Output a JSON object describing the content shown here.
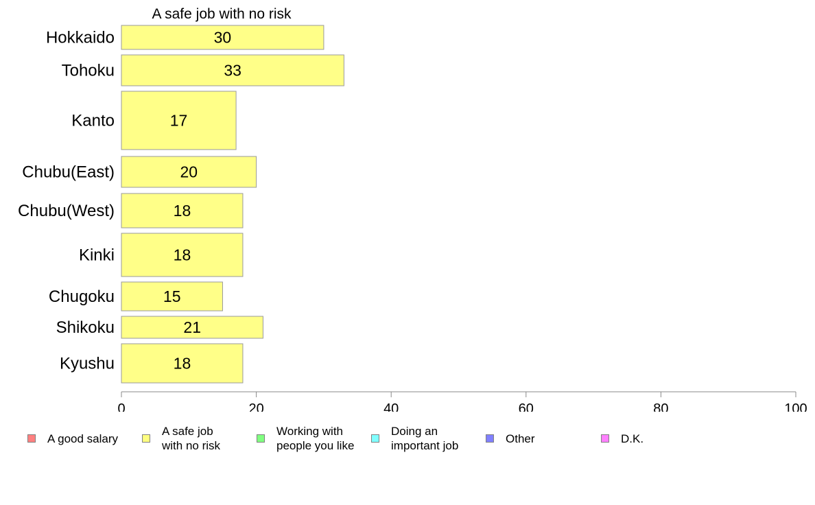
{
  "chart_data": {
    "type": "bar",
    "orientation": "horizontal",
    "title": "A safe job with no risk",
    "categories": [
      "Hokkaido",
      "Tohoku",
      "Kanto",
      "Chubu(East)",
      "Chubu(West)",
      "Kinki",
      "Chugoku",
      "Shikoku",
      "Kyushu"
    ],
    "values": [
      30,
      33,
      17,
      20,
      18,
      18,
      15,
      21,
      18
    ],
    "value_labels": [
      "30",
      "33",
      "17",
      "20",
      "18",
      "18",
      "15",
      "21",
      "18"
    ],
    "xlim": [
      0,
      100
    ],
    "xticks": [
      "0",
      "20",
      "40",
      "60",
      "80",
      "100"
    ],
    "xlabel": "",
    "ylabel": "",
    "grid": false,
    "bar_color": "#ffff88",
    "legend_position": "bottom",
    "legend": [
      {
        "label": "A good salary",
        "color": "#ff8080"
      },
      {
        "label": "A safe job\nwith no risk",
        "color": "#ffff80"
      },
      {
        "label": "Working with\npeople you like",
        "color": "#80ff80"
      },
      {
        "label": "Doing an\nimportant job",
        "color": "#80ffff"
      },
      {
        "label": "Other",
        "color": "#8080ff"
      },
      {
        "label": "D.K.",
        "color": "#ff80ff"
      }
    ]
  }
}
